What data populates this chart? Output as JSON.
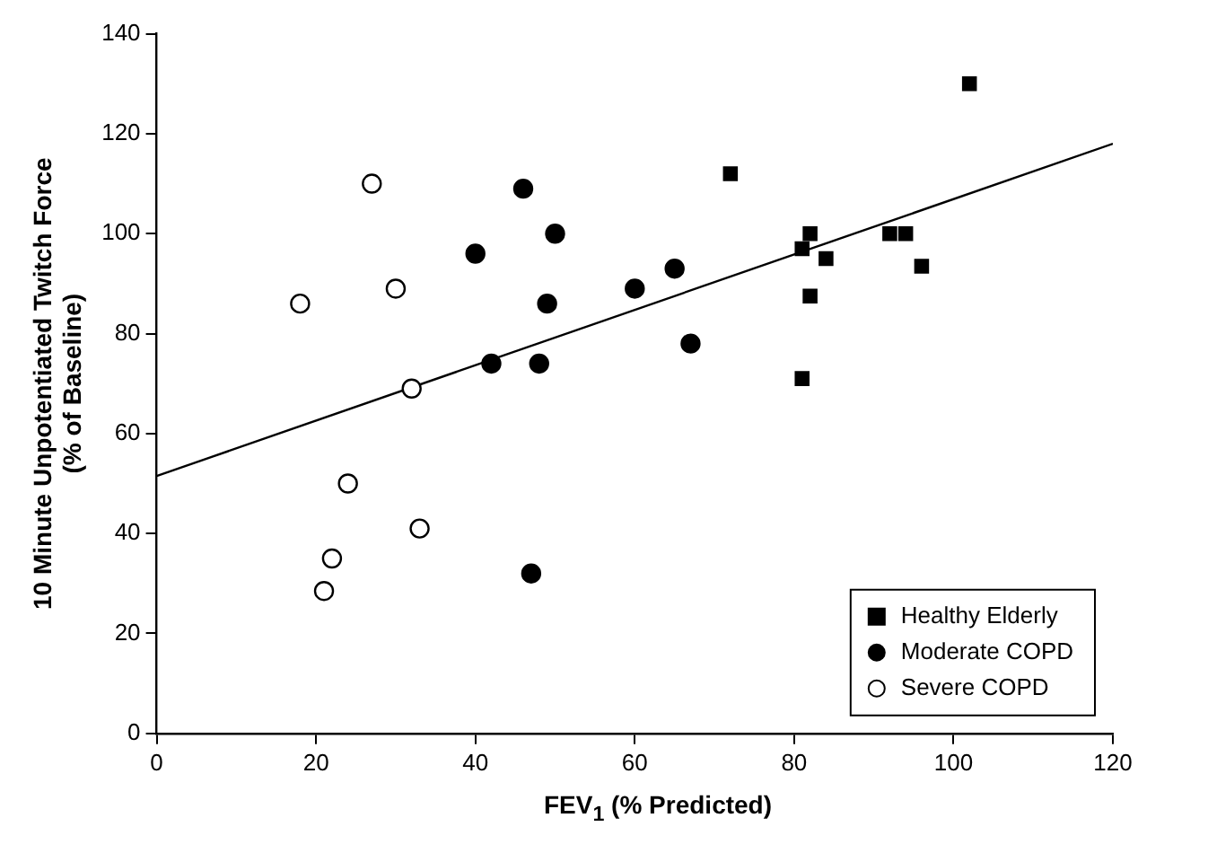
{
  "chart_data": {
    "type": "scatter",
    "xlabel": "FEV$_{1}$ (% Predicted)",
    "ylabel": "10 Minute Unpotentiated Twitch Force\n(% of Baseline)",
    "xlim": [
      0,
      120
    ],
    "xticks": [
      0,
      20,
      40,
      60,
      80,
      100,
      120
    ],
    "ylim": [
      0,
      140
    ],
    "yticks": [
      0,
      20,
      40,
      60,
      80,
      100,
      120,
      140
    ],
    "grid": false,
    "legend": "bottom right",
    "series": [
      {
        "name": "Healthy Elderly",
        "color": "#000000",
        "marker": "square",
        "x": [
          72,
          81,
          82,
          82,
          84,
          81,
          92,
          94,
          96,
          102
        ],
        "values": [
          112,
          97,
          100,
          87.5,
          95,
          71,
          100,
          100,
          93.5,
          130
        ]
      },
      {
        "name": "Moderate COPD",
        "color": "#000000",
        "marker": "circle",
        "x": [
          40,
          42,
          46,
          47,
          48,
          49,
          50,
          60,
          65,
          67
        ],
        "values": [
          96,
          74,
          109,
          32,
          74,
          86,
          100,
          89,
          93,
          78
        ]
      },
      {
        "name": "Severe COPD",
        "color": "#ffffff",
        "marker": "circle",
        "x": [
          18,
          21,
          22,
          24,
          27,
          30,
          32,
          33
        ],
        "values": [
          86,
          28.5,
          35,
          50,
          110,
          89,
          69,
          41
        ]
      },
      {
        "type": "line",
        "color": "#000000",
        "marker": "none",
        "x": [
          0,
          120
        ],
        "values": [
          51.5,
          118
        ]
      }
    ]
  }
}
